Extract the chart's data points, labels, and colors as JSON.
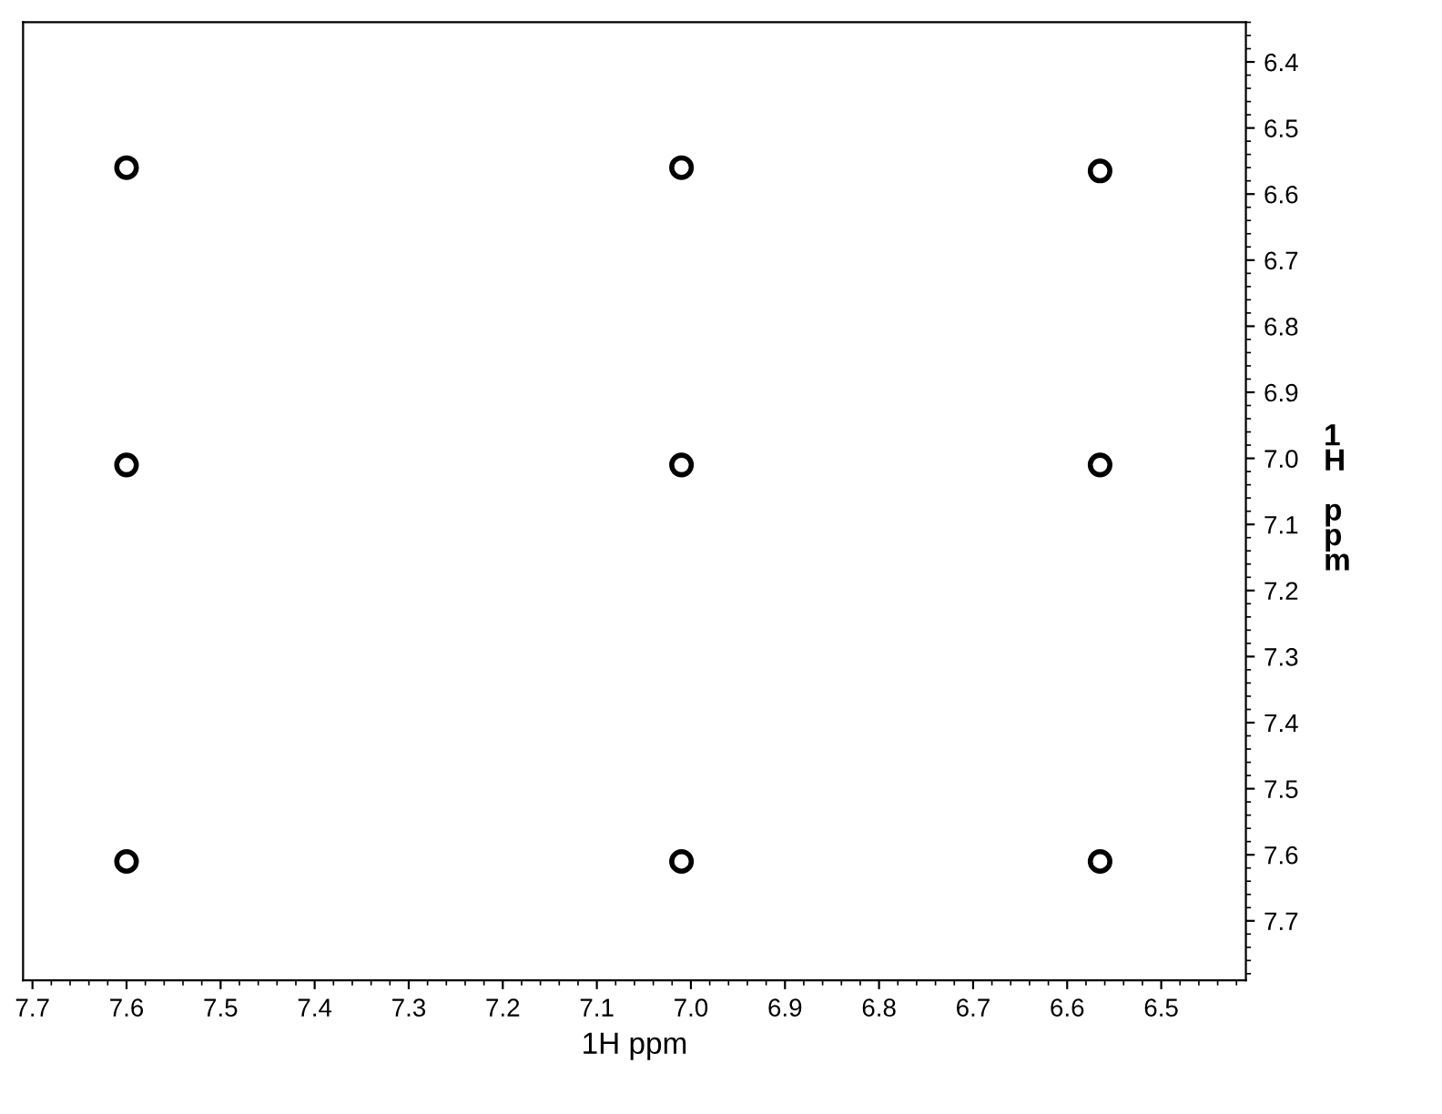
{
  "chart_data": {
    "type": "scatter",
    "xlabel": "1H ppm",
    "ylabel": "1H ppm",
    "x": [
      7.6,
      7.6,
      7.6,
      7.01,
      7.01,
      7.01,
      6.565,
      6.565,
      6.565
    ],
    "values": [
      6.56,
      7.01,
      7.61,
      6.56,
      7.01,
      7.61,
      6.565,
      7.01,
      7.61
    ],
    "color": "#000000",
    "marker": "circle",
    "xlim": [
      7.71,
      6.41
    ],
    "xticks": [
      7.7,
      7.6,
      7.5,
      7.4,
      7.3,
      7.2,
      7.1,
      {
        "value": 7.0,
        "label": "7.0"
      },
      6.9,
      6.8,
      6.7,
      6.6,
      6.5
    ],
    "ylim": [
      7.79,
      6.34
    ],
    "yticks": [
      6.4,
      6.5,
      6.6,
      6.7,
      6.8,
      6.9,
      {
        "value": 7.0,
        "label": "7.0"
      },
      7.1,
      7.2,
      7.3,
      7.4,
      7.5,
      7.6,
      7.7
    ],
    "grid": false
  }
}
